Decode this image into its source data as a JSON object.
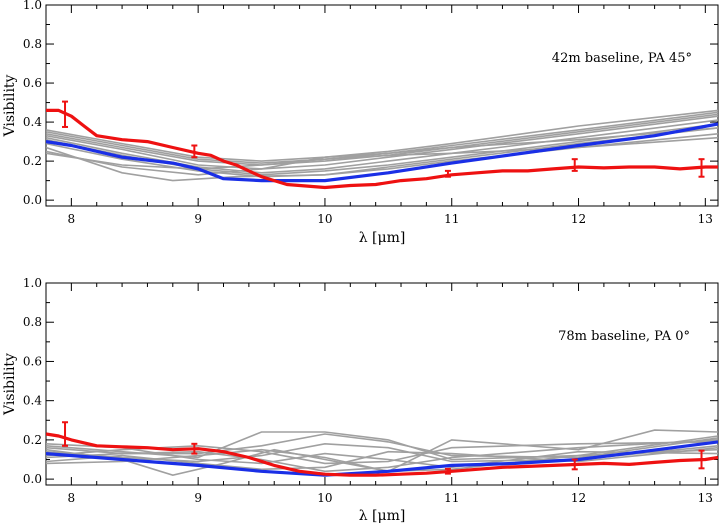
{
  "chart_data": [
    {
      "type": "line",
      "annotation": "42m baseline, PA 45°",
      "xlabel": "λ [μm]",
      "ylabel": "Visibility",
      "xlim": [
        7.8,
        13.1
      ],
      "ylim": [
        -0.03,
        1.0
      ],
      "xticks": [
        8,
        9,
        10,
        11,
        12,
        13
      ],
      "yticks": [
        0.0,
        0.2,
        0.4,
        0.6,
        0.8,
        1.0
      ],
      "yticklabels": [
        "0.0",
        "0.2",
        "0.4",
        "0.6",
        "0.8",
        "1.0"
      ],
      "grid": false,
      "colors": {
        "models": "#a0a0a0",
        "best_model": "#1a2fe6",
        "measured": "#ee1111"
      },
      "model_lines": [
        [
          [
            7.8,
            0.35
          ],
          [
            8.4,
            0.28
          ],
          [
            9.0,
            0.21
          ],
          [
            9.5,
            0.19
          ],
          [
            10.0,
            0.21
          ],
          [
            10.5,
            0.24
          ],
          [
            11.0,
            0.28
          ],
          [
            12.0,
            0.36
          ],
          [
            13.1,
            0.45
          ]
        ],
        [
          [
            7.8,
            0.34
          ],
          [
            8.4,
            0.27
          ],
          [
            9.0,
            0.2
          ],
          [
            9.5,
            0.18
          ],
          [
            10.0,
            0.2
          ],
          [
            10.5,
            0.23
          ],
          [
            11.0,
            0.27
          ],
          [
            12.0,
            0.35
          ],
          [
            13.1,
            0.44
          ]
        ],
        [
          [
            7.8,
            0.33
          ],
          [
            8.4,
            0.26
          ],
          [
            9.0,
            0.18
          ],
          [
            9.5,
            0.16
          ],
          [
            10.0,
            0.18
          ],
          [
            10.5,
            0.22
          ],
          [
            11.0,
            0.26
          ],
          [
            12.0,
            0.34
          ],
          [
            13.1,
            0.43
          ]
        ],
        [
          [
            7.8,
            0.32
          ],
          [
            8.4,
            0.24
          ],
          [
            9.0,
            0.17
          ],
          [
            9.5,
            0.14
          ],
          [
            10.0,
            0.16
          ],
          [
            10.5,
            0.2
          ],
          [
            11.0,
            0.24
          ],
          [
            12.0,
            0.32
          ],
          [
            13.1,
            0.41
          ]
        ],
        [
          [
            7.8,
            0.36
          ],
          [
            8.4,
            0.29
          ],
          [
            9.0,
            0.22
          ],
          [
            9.5,
            0.2
          ],
          [
            10.0,
            0.22
          ],
          [
            10.5,
            0.25
          ],
          [
            11.0,
            0.29
          ],
          [
            12.0,
            0.38
          ],
          [
            13.1,
            0.46
          ]
        ],
        [
          [
            7.8,
            0.31
          ],
          [
            8.4,
            0.23
          ],
          [
            9.0,
            0.16
          ],
          [
            9.5,
            0.13
          ],
          [
            10.0,
            0.15
          ],
          [
            10.5,
            0.18
          ],
          [
            11.0,
            0.22
          ],
          [
            12.0,
            0.3
          ],
          [
            13.1,
            0.39
          ]
        ],
        [
          [
            7.8,
            0.25
          ],
          [
            8.4,
            0.17
          ],
          [
            9.0,
            0.13
          ],
          [
            9.5,
            0.16
          ],
          [
            10.0,
            0.22
          ],
          [
            10.5,
            0.24
          ],
          [
            11.0,
            0.27
          ],
          [
            12.0,
            0.31
          ],
          [
            13.1,
            0.37
          ]
        ],
        [
          [
            7.8,
            0.27
          ],
          [
            8.4,
            0.14
          ],
          [
            8.8,
            0.1
          ],
          [
            9.3,
            0.12
          ],
          [
            10.0,
            0.13
          ],
          [
            10.5,
            0.16
          ],
          [
            11.0,
            0.2
          ],
          [
            12.0,
            0.27
          ],
          [
            13.1,
            0.34
          ]
        ],
        [
          [
            7.8,
            0.29
          ],
          [
            8.4,
            0.21
          ],
          [
            9.0,
            0.15
          ],
          [
            9.5,
            0.12
          ],
          [
            10.0,
            0.13
          ],
          [
            10.5,
            0.17
          ],
          [
            11.0,
            0.21
          ],
          [
            12.0,
            0.29
          ],
          [
            13.1,
            0.37
          ]
        ],
        [
          [
            7.8,
            0.24
          ],
          [
            8.4,
            0.18
          ],
          [
            9.0,
            0.16
          ],
          [
            9.5,
            0.18
          ],
          [
            10.0,
            0.21
          ],
          [
            10.5,
            0.23
          ],
          [
            11.0,
            0.24
          ],
          [
            12.0,
            0.27
          ],
          [
            13.1,
            0.32
          ]
        ]
      ],
      "best_model": [
        [
          7.8,
          0.3
        ],
        [
          8.0,
          0.28
        ],
        [
          8.4,
          0.22
        ],
        [
          8.8,
          0.19
        ],
        [
          9.0,
          0.16
        ],
        [
          9.2,
          0.11
        ],
        [
          9.5,
          0.1
        ],
        [
          10.0,
          0.1
        ],
        [
          10.5,
          0.14
        ],
        [
          11.0,
          0.19
        ],
        [
          12.0,
          0.28
        ],
        [
          12.6,
          0.33
        ],
        [
          13.1,
          0.39
        ]
      ],
      "measured": [
        [
          7.8,
          0.46
        ],
        [
          7.9,
          0.46
        ],
        [
          8.0,
          0.43
        ],
        [
          8.1,
          0.38
        ],
        [
          8.2,
          0.33
        ],
        [
          8.4,
          0.31
        ],
        [
          8.6,
          0.3
        ],
        [
          8.8,
          0.27
        ],
        [
          9.0,
          0.24
        ],
        [
          9.1,
          0.23
        ],
        [
          9.2,
          0.2
        ],
        [
          9.3,
          0.18
        ],
        [
          9.4,
          0.15
        ],
        [
          9.5,
          0.12
        ],
        [
          9.6,
          0.1
        ],
        [
          9.7,
          0.08
        ],
        [
          9.8,
          0.075
        ],
        [
          9.9,
          0.07
        ],
        [
          10.0,
          0.065
        ],
        [
          10.2,
          0.075
        ],
        [
          10.4,
          0.08
        ],
        [
          10.6,
          0.1
        ],
        [
          10.8,
          0.11
        ],
        [
          11.0,
          0.13
        ],
        [
          11.2,
          0.14
        ],
        [
          11.4,
          0.15
        ],
        [
          11.6,
          0.15
        ],
        [
          11.8,
          0.16
        ],
        [
          12.0,
          0.17
        ],
        [
          12.2,
          0.165
        ],
        [
          12.4,
          0.17
        ],
        [
          12.6,
          0.17
        ],
        [
          12.8,
          0.16
        ],
        [
          13.0,
          0.17
        ],
        [
          13.1,
          0.17
        ]
      ],
      "error_bars": [
        {
          "x": 7.95,
          "y": 0.44,
          "err": 0.065
        },
        {
          "x": 8.97,
          "y": 0.25,
          "err": 0.03
        },
        {
          "x": 10.97,
          "y": 0.135,
          "err": 0.015
        },
        {
          "x": 11.97,
          "y": 0.18,
          "err": 0.03
        },
        {
          "x": 12.97,
          "y": 0.165,
          "err": 0.045
        }
      ]
    },
    {
      "type": "line",
      "annotation": "78m baseline, PA 0°",
      "xlabel": "λ [μm]",
      "ylabel": "Visibility",
      "xlim": [
        7.8,
        13.1
      ],
      "ylim": [
        -0.03,
        1.0
      ],
      "xticks": [
        8,
        9,
        10,
        11,
        12,
        13
      ],
      "yticks": [
        0.0,
        0.2,
        0.4,
        0.6,
        0.8,
        1.0
      ],
      "yticklabels": [
        "0.0",
        "0.2",
        "0.4",
        "0.6",
        "0.8",
        "1.0"
      ],
      "grid": false,
      "colors": {
        "models": "#a0a0a0",
        "best_model": "#1a2fe6",
        "measured": "#ee1111"
      },
      "model_lines": [
        [
          [
            7.8,
            0.17
          ],
          [
            8.4,
            0.14
          ],
          [
            9.0,
            0.11
          ],
          [
            9.5,
            0.24
          ],
          [
            10.0,
            0.24
          ],
          [
            10.5,
            0.2
          ],
          [
            11.0,
            0.1
          ],
          [
            12.0,
            0.12
          ],
          [
            13.1,
            0.22
          ]
        ],
        [
          [
            7.8,
            0.16
          ],
          [
            8.4,
            0.13
          ],
          [
            9.0,
            0.13
          ],
          [
            9.5,
            0.17
          ],
          [
            10.0,
            0.23
          ],
          [
            10.5,
            0.19
          ],
          [
            11.0,
            0.12
          ],
          [
            12.0,
            0.11
          ],
          [
            13.1,
            0.21
          ]
        ],
        [
          [
            7.8,
            0.15
          ],
          [
            8.4,
            0.1
          ],
          [
            8.8,
            0.02
          ],
          [
            9.2,
            0.08
          ],
          [
            9.6,
            0.15
          ],
          [
            10.0,
            0.1
          ],
          [
            10.5,
            0.04
          ],
          [
            11.0,
            0.2
          ],
          [
            12.0,
            0.15
          ],
          [
            12.6,
            0.25
          ],
          [
            13.1,
            0.24
          ]
        ],
        [
          [
            7.8,
            0.12
          ],
          [
            8.4,
            0.15
          ],
          [
            9.0,
            0.17
          ],
          [
            9.5,
            0.14
          ],
          [
            10.0,
            0.08
          ],
          [
            10.5,
            0.09
          ],
          [
            11.0,
            0.16
          ],
          [
            12.0,
            0.18
          ],
          [
            13.1,
            0.19
          ]
        ],
        [
          [
            7.8,
            0.09
          ],
          [
            8.4,
            0.12
          ],
          [
            9.0,
            0.08
          ],
          [
            9.5,
            0.05
          ],
          [
            10.0,
            0.06
          ],
          [
            10.5,
            0.14
          ],
          [
            11.0,
            0.13
          ],
          [
            12.0,
            0.09
          ],
          [
            13.1,
            0.16
          ]
        ],
        [
          [
            7.8,
            0.18
          ],
          [
            8.4,
            0.16
          ],
          [
            9.0,
            0.1
          ],
          [
            9.5,
            0.08
          ],
          [
            10.0,
            0.13
          ],
          [
            10.5,
            0.1
          ],
          [
            11.0,
            0.06
          ],
          [
            12.0,
            0.14
          ],
          [
            13.1,
            0.13
          ]
        ],
        [
          [
            7.8,
            0.11
          ],
          [
            8.4,
            0.13
          ],
          [
            9.0,
            0.14
          ],
          [
            9.5,
            0.1
          ],
          [
            10.0,
            0.04
          ],
          [
            10.5,
            0.06
          ],
          [
            11.0,
            0.11
          ],
          [
            12.0,
            0.16
          ],
          [
            13.1,
            0.2
          ]
        ],
        [
          [
            7.8,
            0.14
          ],
          [
            8.4,
            0.11
          ],
          [
            9.0,
            0.09
          ],
          [
            9.5,
            0.12
          ],
          [
            10.0,
            0.18
          ],
          [
            10.5,
            0.16
          ],
          [
            11.0,
            0.09
          ],
          [
            12.0,
            0.1
          ],
          [
            13.1,
            0.17
          ]
        ],
        [
          [
            7.8,
            0.08
          ],
          [
            8.4,
            0.09
          ],
          [
            9.0,
            0.12
          ],
          [
            9.5,
            0.15
          ],
          [
            10.0,
            0.11
          ],
          [
            10.5,
            0.04
          ],
          [
            11.0,
            0.05
          ],
          [
            12.0,
            0.12
          ],
          [
            13.1,
            0.15
          ]
        ]
      ],
      "best_model": [
        [
          7.8,
          0.13
        ],
        [
          8.2,
          0.11
        ],
        [
          8.6,
          0.09
        ],
        [
          9.0,
          0.07
        ],
        [
          9.5,
          0.04
        ],
        [
          10.0,
          0.02
        ],
        [
          10.5,
          0.04
        ],
        [
          11.0,
          0.07
        ],
        [
          11.5,
          0.08
        ],
        [
          12.0,
          0.1
        ],
        [
          12.5,
          0.14
        ],
        [
          13.1,
          0.19
        ]
      ],
      "measured": [
        [
          7.8,
          0.23
        ],
        [
          7.9,
          0.22
        ],
        [
          8.0,
          0.2
        ],
        [
          8.2,
          0.17
        ],
        [
          8.4,
          0.165
        ],
        [
          8.6,
          0.16
        ],
        [
          8.8,
          0.15
        ],
        [
          9.0,
          0.155
        ],
        [
          9.2,
          0.14
        ],
        [
          9.4,
          0.11
        ],
        [
          9.6,
          0.07
        ],
        [
          9.8,
          0.04
        ],
        [
          10.0,
          0.025
        ],
        [
          10.2,
          0.02
        ],
        [
          10.4,
          0.02
        ],
        [
          10.6,
          0.025
        ],
        [
          10.8,
          0.03
        ],
        [
          11.0,
          0.04
        ],
        [
          11.2,
          0.05
        ],
        [
          11.4,
          0.06
        ],
        [
          11.6,
          0.065
        ],
        [
          11.8,
          0.07
        ],
        [
          12.0,
          0.075
        ],
        [
          12.2,
          0.08
        ],
        [
          12.4,
          0.075
        ],
        [
          12.6,
          0.085
        ],
        [
          12.8,
          0.095
        ],
        [
          13.0,
          0.1
        ],
        [
          13.1,
          0.11
        ]
      ],
      "error_bars": [
        {
          "x": 7.95,
          "y": 0.23,
          "err": 0.06
        },
        {
          "x": 8.97,
          "y": 0.155,
          "err": 0.025
        },
        {
          "x": 10.97,
          "y": 0.04,
          "err": 0.012
        },
        {
          "x": 11.97,
          "y": 0.075,
          "err": 0.025
        },
        {
          "x": 12.97,
          "y": 0.1,
          "err": 0.045
        }
      ]
    }
  ]
}
